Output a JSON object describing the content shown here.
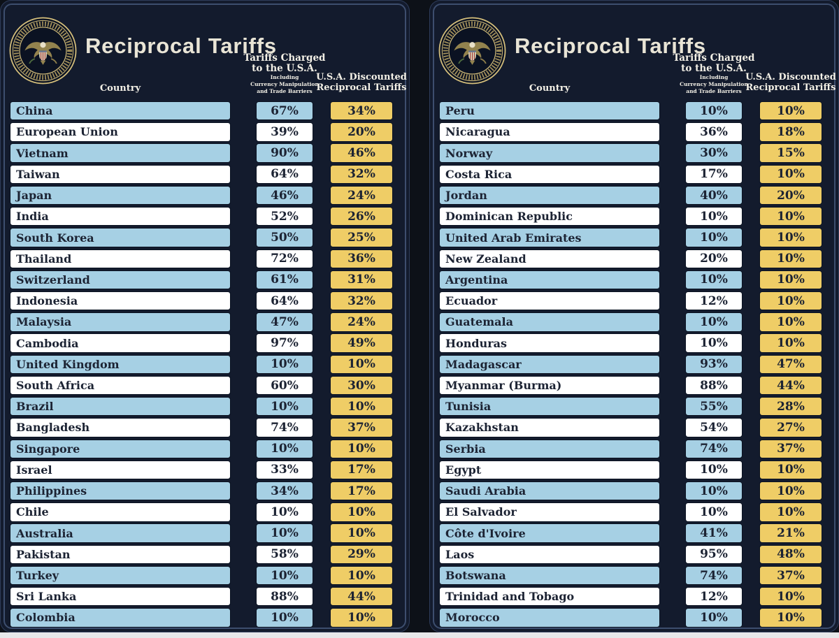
{
  "header": {
    "title": "Reciprocal Tariffs",
    "country_label": "Country",
    "charged_label_lines": [
      "Tariffs Charged",
      "to the U.S.A."
    ],
    "charged_sub_lines": [
      "Including",
      "Currency Manipulation",
      "and Trade Barriers"
    ],
    "discounted_label_lines": [
      "U.S.A. Discounted",
      "Reciprocal Tariffs"
    ]
  },
  "colors": {
    "card_navy": "#131b2d",
    "inset_border": "#3d4e6e",
    "row_blue": "#a6d0e4",
    "row_white": "#ffffff",
    "discount_gold": "#efcd66",
    "title_cream": "#e9e5d6",
    "pill_text": "#1c2333",
    "seal_gold": "#d6c07c"
  },
  "chart_data": [
    {
      "type": "table",
      "title": "Reciprocal Tariffs",
      "columns": [
        "Country",
        "Tariffs Charged to the U.S.A. Including Currency Manipulation and Trade Barriers",
        "U.S.A. Discounted Reciprocal Tariffs"
      ],
      "rows": [
        [
          "China",
          "67%",
          "34%"
        ],
        [
          "European Union",
          "39%",
          "20%"
        ],
        [
          "Vietnam",
          "90%",
          "46%"
        ],
        [
          "Taiwan",
          "64%",
          "32%"
        ],
        [
          "Japan",
          "46%",
          "24%"
        ],
        [
          "India",
          "52%",
          "26%"
        ],
        [
          "South Korea",
          "50%",
          "25%"
        ],
        [
          "Thailand",
          "72%",
          "36%"
        ],
        [
          "Switzerland",
          "61%",
          "31%"
        ],
        [
          "Indonesia",
          "64%",
          "32%"
        ],
        [
          "Malaysia",
          "47%",
          "24%"
        ],
        [
          "Cambodia",
          "97%",
          "49%"
        ],
        [
          "United Kingdom",
          "10%",
          "10%"
        ],
        [
          "South Africa",
          "60%",
          "30%"
        ],
        [
          "Brazil",
          "10%",
          "10%"
        ],
        [
          "Bangladesh",
          "74%",
          "37%"
        ],
        [
          "Singapore",
          "10%",
          "10%"
        ],
        [
          "Israel",
          "33%",
          "17%"
        ],
        [
          "Philippines",
          "34%",
          "17%"
        ],
        [
          "Chile",
          "10%",
          "10%"
        ],
        [
          "Australia",
          "10%",
          "10%"
        ],
        [
          "Pakistan",
          "58%",
          "29%"
        ],
        [
          "Turkey",
          "10%",
          "10%"
        ],
        [
          "Sri Lanka",
          "88%",
          "44%"
        ],
        [
          "Colombia",
          "10%",
          "10%"
        ]
      ]
    },
    {
      "type": "table",
      "title": "Reciprocal Tariffs",
      "columns": [
        "Country",
        "Tariffs Charged to the U.S.A. Including Currency Manipulation and Trade Barriers",
        "U.S.A. Discounted Reciprocal Tariffs"
      ],
      "rows": [
        [
          "Peru",
          "10%",
          "10%"
        ],
        [
          "Nicaragua",
          "36%",
          "18%"
        ],
        [
          "Norway",
          "30%",
          "15%"
        ],
        [
          "Costa Rica",
          "17%",
          "10%"
        ],
        [
          "Jordan",
          "40%",
          "20%"
        ],
        [
          "Dominican Republic",
          "10%",
          "10%"
        ],
        [
          "United Arab Emirates",
          "10%",
          "10%"
        ],
        [
          "New Zealand",
          "20%",
          "10%"
        ],
        [
          "Argentina",
          "10%",
          "10%"
        ],
        [
          "Ecuador",
          "12%",
          "10%"
        ],
        [
          "Guatemala",
          "10%",
          "10%"
        ],
        [
          "Honduras",
          "10%",
          "10%"
        ],
        [
          "Madagascar",
          "93%",
          "47%"
        ],
        [
          "Myanmar (Burma)",
          "88%",
          "44%"
        ],
        [
          "Tunisia",
          "55%",
          "28%"
        ],
        [
          "Kazakhstan",
          "54%",
          "27%"
        ],
        [
          "Serbia",
          "74%",
          "37%"
        ],
        [
          "Egypt",
          "10%",
          "10%"
        ],
        [
          "Saudi Arabia",
          "10%",
          "10%"
        ],
        [
          "El Salvador",
          "10%",
          "10%"
        ],
        [
          "Côte d'Ivoire",
          "41%",
          "21%"
        ],
        [
          "Laos",
          "95%",
          "48%"
        ],
        [
          "Botswana",
          "74%",
          "37%"
        ],
        [
          "Trinidad and Tobago",
          "12%",
          "10%"
        ],
        [
          "Morocco",
          "10%",
          "10%"
        ]
      ]
    }
  ]
}
